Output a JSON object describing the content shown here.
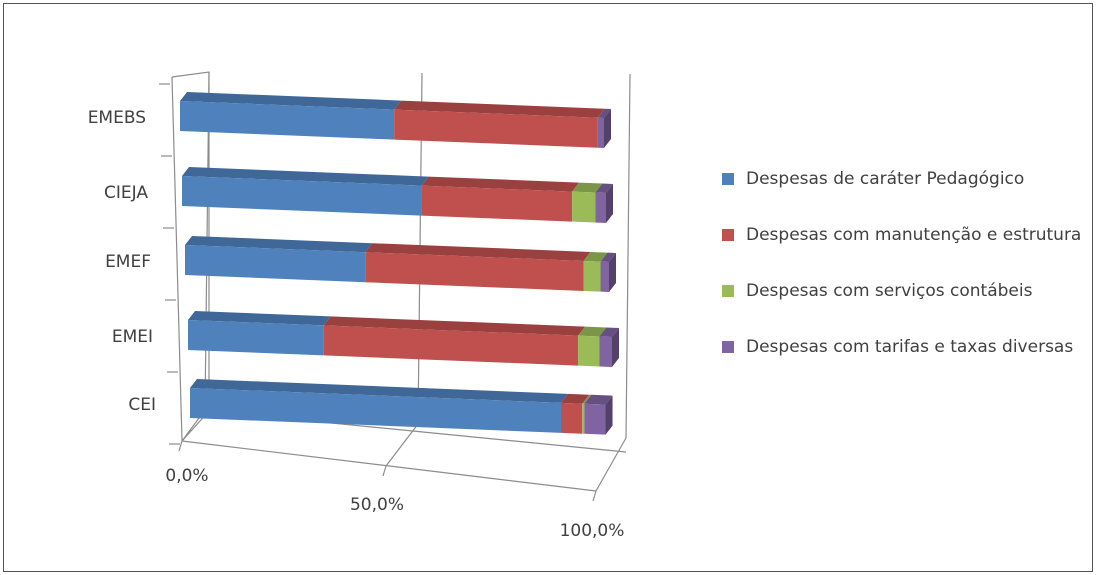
{
  "chart_data": {
    "type": "bar",
    "orientation": "horizontal",
    "stacked": "percent",
    "three_d": true,
    "categories": [
      "EMEBS",
      "CIEJA",
      "EMEF",
      "EMEI",
      "CEI"
    ],
    "series": [
      {
        "name": "Despesas de caráter Pedagógico",
        "color": "#4F81BD",
        "values": [
          50.5,
          56.5,
          42.5,
          32.0,
          87.5
        ]
      },
      {
        "name": "Despesas com manutenção e estrutura",
        "color": "#C0504D",
        "values": [
          48.0,
          35.5,
          51.5,
          60.0,
          5.0
        ]
      },
      {
        "name": "Despesas com serviços contábeis",
        "color": "#9BBB59",
        "values": [
          0.0,
          5.5,
          4.0,
          5.0,
          0.5
        ]
      },
      {
        "name": "Despesas com tarifas e taxas diversas",
        "color": "#8064A2",
        "values": [
          1.5,
          2.5,
          2.0,
          3.0,
          5.0
        ]
      }
    ],
    "x_ticks": [
      0,
      50,
      100
    ],
    "x_tick_labels": [
      "0,0%",
      "50,0%",
      "100,0%"
    ],
    "xlim": [
      0,
      100
    ],
    "legend_position": "right",
    "gridlines": true
  }
}
